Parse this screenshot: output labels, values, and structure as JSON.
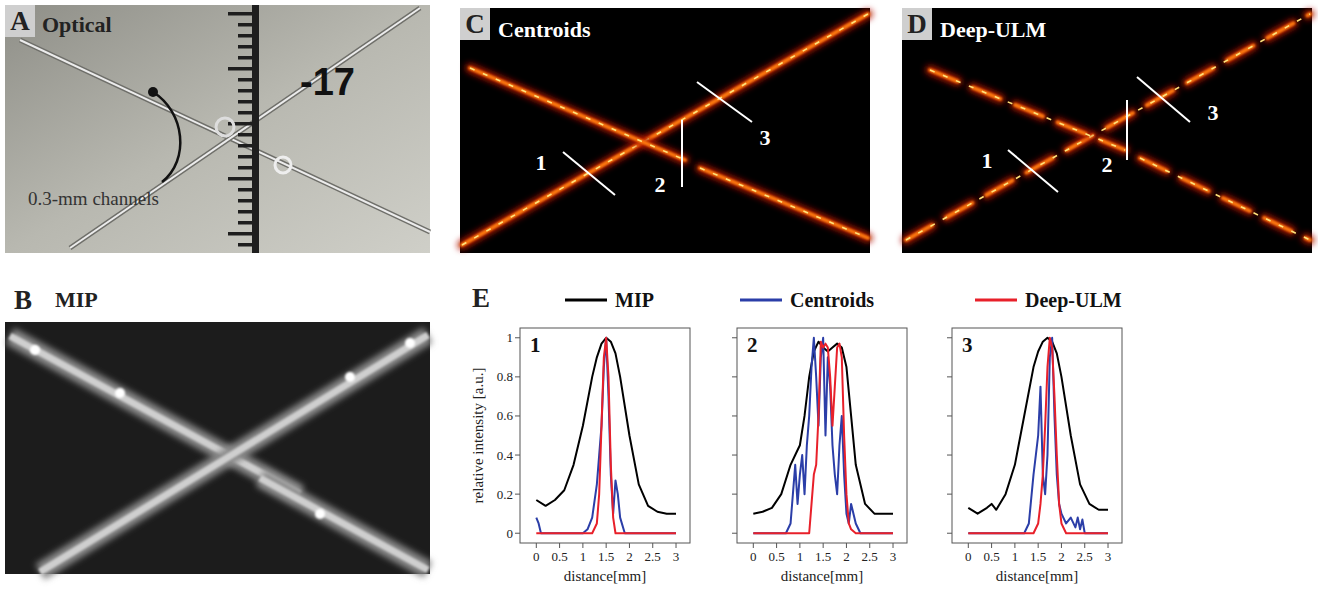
{
  "figure": {
    "panels": [
      {
        "letter": "A",
        "title": "Optical",
        "annotation": "0.3-mm channels",
        "ruler_label": "-17"
      },
      {
        "letter": "B",
        "title": "MIP"
      },
      {
        "letter": "C",
        "title": "Centroids",
        "profile_labels": [
          "1",
          "2",
          "3"
        ]
      },
      {
        "letter": "D",
        "title": "Deep-ULM",
        "profile_labels": [
          "1",
          "2",
          "3"
        ]
      },
      {
        "letter": "E"
      }
    ]
  },
  "chart_data": [
    {
      "type": "line",
      "title": "1",
      "xlabel": "distance[mm]",
      "ylabel": "relative intensity [a.u.]",
      "legend": "top",
      "xlim": [
        -0.35,
        3.3
      ],
      "ylim": [
        -0.05,
        1.05
      ],
      "xticks": [
        0,
        0.5,
        1,
        1.5,
        2,
        2.5,
        3
      ],
      "yticks": [
        0,
        0.2,
        0.4,
        0.6,
        0.8,
        1
      ],
      "series": [
        {
          "name": "MIP",
          "color": "#000000",
          "x": [
            0,
            0.2,
            0.4,
            0.6,
            0.8,
            1.0,
            1.2,
            1.3,
            1.4,
            1.5,
            1.6,
            1.7,
            1.8,
            2.0,
            2.2,
            2.4,
            2.6,
            2.8,
            3.0
          ],
          "values": [
            0.17,
            0.14,
            0.17,
            0.22,
            0.35,
            0.55,
            0.8,
            0.9,
            0.97,
            1.0,
            0.98,
            0.92,
            0.8,
            0.5,
            0.25,
            0.14,
            0.11,
            0.1,
            0.1
          ]
        },
        {
          "name": "Centroids",
          "color": "#2b3ea8",
          "x": [
            0,
            0.05,
            0.1,
            0.15,
            1.0,
            1.1,
            1.2,
            1.3,
            1.35,
            1.4,
            1.45,
            1.5,
            1.55,
            1.6,
            1.65,
            1.7,
            1.75,
            1.8,
            1.9,
            2.0,
            3.0
          ],
          "values": [
            0.08,
            0.05,
            0,
            0,
            0,
            0.02,
            0.08,
            0.25,
            0.4,
            0.55,
            0.85,
            1.0,
            0.7,
            0.3,
            0.1,
            0.27,
            0.2,
            0.08,
            0,
            0,
            0
          ]
        },
        {
          "name": "Deep-ULM",
          "color": "#e8202a",
          "x": [
            0,
            1.2,
            1.3,
            1.35,
            1.4,
            1.45,
            1.5,
            1.55,
            1.6,
            1.65,
            1.7,
            3.0
          ],
          "values": [
            0,
            0,
            0.05,
            0.2,
            0.55,
            0.9,
            1.0,
            0.8,
            0.35,
            0.08,
            0,
            0
          ]
        }
      ]
    },
    {
      "type": "line",
      "title": "2",
      "xlabel": "distance[mm]",
      "tick_labels": "x",
      "xlim": [
        -0.35,
        3.3
      ],
      "ylim": [
        -0.05,
        1.05
      ],
      "xticks": [
        0,
        0.5,
        1,
        1.5,
        2,
        2.5,
        3
      ],
      "yticks": [
        0,
        0.2,
        0.4,
        0.6,
        0.8,
        1
      ],
      "series": [
        {
          "color": "#000000",
          "x": [
            0,
            0.2,
            0.4,
            0.6,
            0.8,
            0.9,
            1.0,
            1.1,
            1.2,
            1.3,
            1.4,
            1.5,
            1.6,
            1.7,
            1.8,
            1.9,
            2.0,
            2.1,
            2.2,
            2.4,
            2.6,
            2.8,
            3.0
          ],
          "values": [
            0.1,
            0.11,
            0.13,
            0.2,
            0.35,
            0.4,
            0.45,
            0.6,
            0.8,
            0.93,
            0.98,
            0.95,
            0.93,
            0.95,
            0.97,
            0.95,
            0.85,
            0.6,
            0.35,
            0.15,
            0.1,
            0.1,
            0.1
          ]
        },
        {
          "color": "#2b3ea8",
          "x": [
            0,
            0.7,
            0.8,
            0.85,
            0.9,
            0.95,
            1.0,
            1.05,
            1.1,
            1.15,
            1.2,
            1.25,
            1.3,
            1.35,
            1.4,
            1.45,
            1.5,
            1.55,
            1.6,
            1.65,
            1.7,
            1.75,
            1.8,
            1.85,
            1.9,
            1.95,
            2.0,
            2.05,
            2.1,
            2.2,
            2.3,
            3.0
          ],
          "values": [
            0,
            0,
            0.05,
            0.2,
            0.35,
            0.15,
            0.3,
            0.4,
            0.2,
            0.45,
            0.6,
            0.85,
            1.0,
            0.8,
            0.55,
            0.9,
            1.0,
            0.5,
            0.9,
            0.75,
            0.45,
            0.3,
            0.2,
            0.45,
            0.6,
            0.3,
            0.1,
            0.05,
            0.15,
            0.05,
            0,
            0
          ]
        },
        {
          "color": "#e8202a",
          "x": [
            0,
            1.2,
            1.25,
            1.3,
            1.35,
            1.4,
            1.45,
            1.5,
            1.55,
            1.6,
            1.65,
            1.7,
            1.75,
            1.8,
            1.85,
            1.9,
            1.95,
            2.0,
            2.05,
            2.1,
            2.2,
            3.0
          ],
          "values": [
            0,
            0,
            0.15,
            0.3,
            0.35,
            0.6,
            0.98,
            0.95,
            0.97,
            0.95,
            0.8,
            0.55,
            0.75,
            0.95,
            0.97,
            0.9,
            0.5,
            0.2,
            0.05,
            0.02,
            0,
            0
          ]
        }
      ]
    },
    {
      "type": "line",
      "title": "3",
      "xlabel": "distance[mm]",
      "tick_labels": "x",
      "xlim": [
        -0.35,
        3.3
      ],
      "ylim": [
        -0.05,
        1.05
      ],
      "xticks": [
        0,
        0.5,
        1,
        1.5,
        2,
        2.5,
        3
      ],
      "yticks": [
        0,
        0.2,
        0.4,
        0.6,
        0.8,
        1
      ],
      "series": [
        {
          "color": "#000000",
          "x": [
            0,
            0.2,
            0.4,
            0.5,
            0.6,
            0.8,
            1.0,
            1.2,
            1.4,
            1.5,
            1.6,
            1.7,
            1.8,
            1.9,
            2.0,
            2.2,
            2.4,
            2.6,
            2.8,
            3.0
          ],
          "values": [
            0.13,
            0.1,
            0.13,
            0.15,
            0.12,
            0.2,
            0.35,
            0.6,
            0.85,
            0.93,
            0.98,
            1.0,
            0.98,
            0.92,
            0.8,
            0.5,
            0.25,
            0.15,
            0.12,
            0.12
          ]
        },
        {
          "color": "#2b3ea8",
          "x": [
            0,
            1.2,
            1.3,
            1.4,
            1.45,
            1.5,
            1.55,
            1.6,
            1.65,
            1.7,
            1.75,
            1.8,
            1.85,
            1.9,
            1.95,
            2.0,
            2.1,
            2.2,
            2.3,
            2.35,
            2.4,
            2.45,
            2.5,
            3.0
          ],
          "values": [
            0,
            0,
            0.05,
            0.3,
            0.4,
            0.5,
            0.75,
            0.3,
            0.2,
            0.4,
            0.9,
            1.0,
            0.6,
            0.3,
            0.15,
            0.1,
            0.05,
            0.08,
            0.03,
            0.08,
            0.02,
            0.07,
            0,
            0
          ]
        },
        {
          "color": "#e8202a",
          "x": [
            0,
            1.4,
            1.5,
            1.55,
            1.6,
            1.65,
            1.7,
            1.75,
            1.8,
            1.85,
            1.9,
            1.95,
            2.0,
            2.1,
            3.0
          ],
          "values": [
            0,
            0,
            0.05,
            0.15,
            0.3,
            0.55,
            0.85,
            1.0,
            0.95,
            0.7,
            0.4,
            0.15,
            0.05,
            0,
            0
          ]
        }
      ]
    }
  ]
}
